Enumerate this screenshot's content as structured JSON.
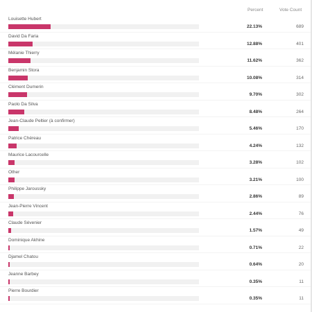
{
  "header": {
    "percent_label": "Percent",
    "votes_label": "Vote Count"
  },
  "colors": {
    "bar": "#c9366a",
    "track": "#f1f1f1"
  },
  "results": [
    {
      "name": "Louisette Hubert",
      "percent": "22.13%",
      "votes": "689",
      "share": 0.2213
    },
    {
      "name": "David Da Faria",
      "percent": "12.88%",
      "votes": "401",
      "share": 0.1288
    },
    {
      "name": "Mélanie Thierry",
      "percent": "11.62%",
      "votes": "362",
      "share": 0.1162
    },
    {
      "name": "Benjamin Stora",
      "percent": "10.08%",
      "votes": "314",
      "share": 0.1008
    },
    {
      "name": "Clément Dumerin",
      "percent": "9.70%",
      "votes": "302",
      "share": 0.097
    },
    {
      "name": "Paolo Da Silva",
      "percent": "8.48%",
      "votes": "264",
      "share": 0.0848
    },
    {
      "name": "Jean-Claude Peltier (à confirmer)",
      "percent": "5.46%",
      "votes": "170",
      "share": 0.0546
    },
    {
      "name": "Patrice Chéreau",
      "percent": "4.24%",
      "votes": "132",
      "share": 0.0424
    },
    {
      "name": "Maurice Lacourcelle",
      "percent": "3.28%",
      "votes": "102",
      "share": 0.0328
    },
    {
      "name": "Other",
      "percent": "3.21%",
      "votes": "100",
      "share": 0.0321
    },
    {
      "name": "Philippe Jaroussky",
      "percent": "2.86%",
      "votes": "89",
      "share": 0.0286
    },
    {
      "name": "Jean-Pierre Vincent",
      "percent": "2.44%",
      "votes": "76",
      "share": 0.0244
    },
    {
      "name": "Claude Sévenier",
      "percent": "1.57%",
      "votes": "49",
      "share": 0.0157
    },
    {
      "name": "Dominique Akhine",
      "percent": "0.71%",
      "votes": "22",
      "share": 0.0071
    },
    {
      "name": "Djamel Chatou",
      "percent": "0.64%",
      "votes": "20",
      "share": 0.0064
    },
    {
      "name": "Jeanne Barbey",
      "percent": "0.35%",
      "votes": "11",
      "share": 0.0035
    },
    {
      "name": "Pierre Bourdier",
      "percent": "0.35%",
      "votes": "11",
      "share": 0.0035
    }
  ]
}
